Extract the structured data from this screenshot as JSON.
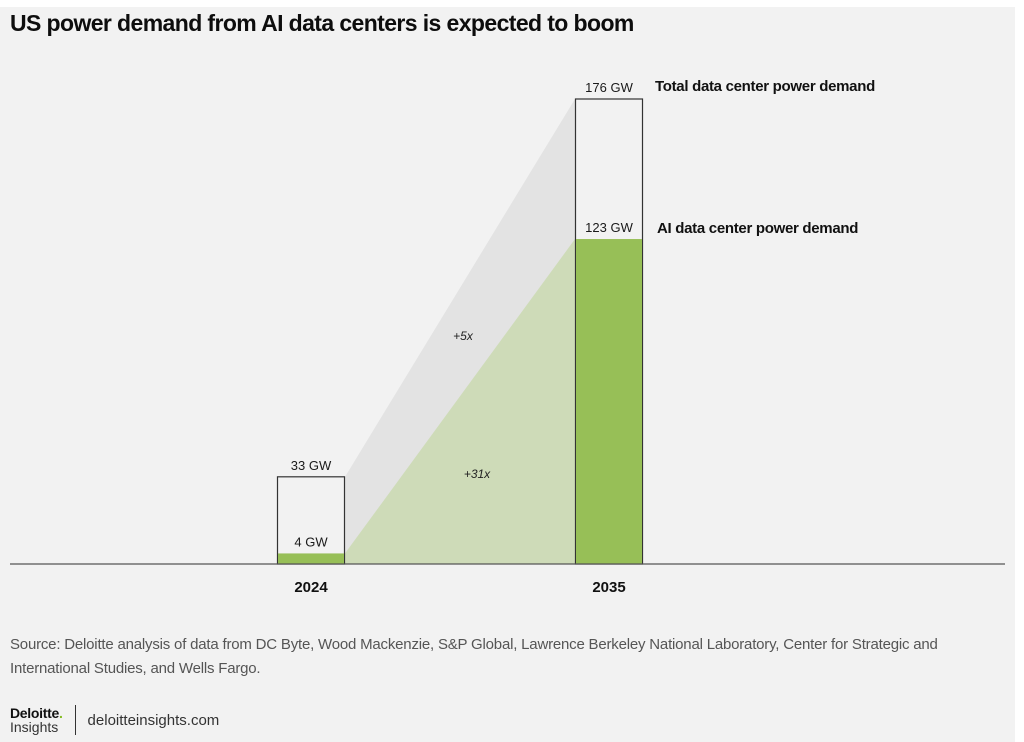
{
  "title": "US power demand from AI data centers is expected to boom",
  "chart_data": {
    "type": "bar",
    "title": "US power demand from AI data centers is expected to boom",
    "categories": [
      "2024",
      "2035"
    ],
    "unit": "GW",
    "series": [
      {
        "name": "Total data center power demand",
        "values": [
          33,
          176
        ],
        "labels": [
          "33 GW",
          "176 GW"
        ],
        "color": "#f2f2f2",
        "outline": "#333333"
      },
      {
        "name": "AI data center power demand",
        "values": [
          4,
          123
        ],
        "labels": [
          "4 GW",
          "123 GW"
        ],
        "color": "#97bf57"
      }
    ],
    "growth_annotations": [
      {
        "series": "Total data center power demand",
        "label": "+5x",
        "band_color": "#e3e3e3"
      },
      {
        "series": "AI data center power demand",
        "label": "+31x",
        "band_color": "#cedbb8"
      }
    ],
    "xlabel": "",
    "ylabel": "",
    "ylim": [
      0,
      176
    ],
    "grid": false,
    "legend": "direct labels right of 2035 bar"
  },
  "source": "Source: Deloitte analysis of data from DC Byte, Wood Mackenzie, S&P Global, Lawrence Berkeley National Laboratory, Center for Strategic and International Studies, and Wells Fargo.",
  "brand": {
    "name": "Deloitte",
    "dot": ".",
    "sub": "Insights",
    "url": "deloitteinsights.com"
  }
}
